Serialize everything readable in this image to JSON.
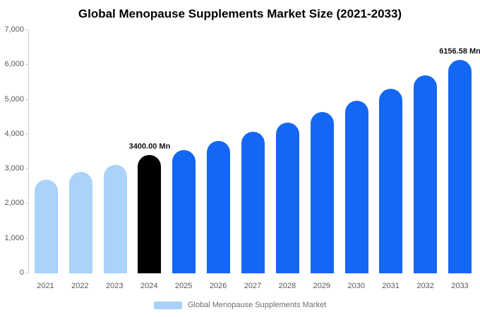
{
  "title": "Global Menopause Supplements Market Size (2021-2033)",
  "legend": {
    "label": "Global Menopause Supplements Market"
  },
  "colors": {
    "historical": "#a9d3f8",
    "highlight": "#000000",
    "forecast": "#1467f2",
    "axis": "#d0d0d0",
    "tick_text": "#595959"
  },
  "chart_data": {
    "type": "bar",
    "title": "Global Menopause Supplements Market Size (2021-2033)",
    "unit": "Mn",
    "categories": [
      "2021",
      "2022",
      "2023",
      "2024",
      "2025",
      "2026",
      "2027",
      "2028",
      "2029",
      "2030",
      "2031",
      "2032",
      "2033"
    ],
    "values": [
      2700,
      2920,
      3120,
      3400,
      3560,
      3820,
      4080,
      4350,
      4650,
      4980,
      5320,
      5700,
      6156.58
    ],
    "bar_roles": [
      "historical",
      "historical",
      "historical",
      "highlight",
      "forecast",
      "forecast",
      "forecast",
      "forecast",
      "forecast",
      "forecast",
      "forecast",
      "forecast",
      "forecast"
    ],
    "data_labels": {
      "2024": "3400.00 Mn",
      "2033": "6156.58 Mn"
    },
    "ylim": [
      0,
      7000
    ],
    "ytick_values": [
      0,
      1000,
      2000,
      3000,
      4000,
      5000,
      6000,
      7000
    ],
    "ytick_labels": [
      "0",
      "1,000",
      "2,000",
      "3,000",
      "4,000",
      "5,000",
      "6,000",
      "7,000"
    ],
    "grid": false,
    "legend_position": "bottom"
  }
}
